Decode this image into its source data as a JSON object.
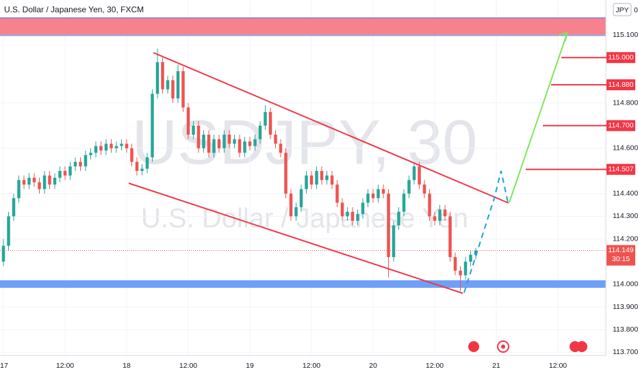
{
  "chart_data": {
    "type": "candlestick",
    "title": "U.S. Dollar / Japanese Yen, 30, FXCM",
    "watermark": "USDJPY, 30",
    "watermark_subtitle": "U.S. Dollar / Japanese Yen",
    "currency": "JPY",
    "currency_note": "0",
    "up_color": "#26a69a",
    "down_color": "#ef5350",
    "xlim": [
      -0.667,
      117.33
    ],
    "ylim": [
      113.686,
      115.254
    ],
    "xticks": [
      {
        "value": 0,
        "label": "17"
      },
      {
        "value": 12,
        "label": "12:00"
      },
      {
        "value": 24,
        "label": "18"
      },
      {
        "value": 36,
        "label": "12:00"
      },
      {
        "value": 48,
        "label": "19"
      },
      {
        "value": 60,
        "label": "12:00"
      },
      {
        "value": 72,
        "label": "20"
      },
      {
        "value": 84,
        "label": "12:00"
      },
      {
        "value": 96,
        "label": "21"
      },
      {
        "value": 108,
        "label": "12:00"
      }
    ],
    "yticks": [
      {
        "value": 115.1,
        "label": "115.100"
      },
      {
        "value": 114.8,
        "label": "114.800"
      },
      {
        "value": 114.6,
        "label": "114.600"
      },
      {
        "value": 114.4,
        "label": "114.400"
      },
      {
        "value": 114.3,
        "label": "114.300"
      },
      {
        "value": 114.2,
        "label": "114.200"
      },
      {
        "value": 114.0,
        "label": "114.000"
      },
      {
        "value": 113.9,
        "label": "113.900"
      },
      {
        "value": 113.8,
        "label": "113.800"
      },
      {
        "value": 113.7,
        "label": "113.700"
      }
    ],
    "levels": [
      {
        "value": 115.0,
        "label": "115.000"
      },
      {
        "value": 114.88,
        "label": "114.880"
      },
      {
        "value": 114.7,
        "label": "114.700"
      },
      {
        "value": 114.507,
        "label": "114.507"
      }
    ],
    "current_price": {
      "value": 114.149,
      "label": "114.149"
    },
    "countdown": "30:15",
    "x": [
      0,
      1,
      2,
      3,
      4,
      5,
      6,
      7,
      8,
      9,
      10,
      11,
      12,
      13,
      14,
      15,
      16,
      17,
      18,
      19,
      20,
      21,
      22,
      23,
      24,
      25,
      26,
      27,
      28,
      29,
      30,
      31,
      32,
      33,
      34,
      35,
      36,
      37,
      38,
      39,
      40,
      41,
      42,
      43,
      44,
      45,
      46,
      47,
      48,
      49,
      50,
      51,
      52,
      53,
      54,
      55,
      56,
      57,
      58,
      59,
      60,
      61,
      62,
      63,
      64,
      65,
      66,
      67,
      68,
      69,
      70,
      71,
      72,
      73,
      74,
      75,
      76,
      77,
      78,
      79,
      80,
      81,
      82,
      83,
      84,
      85,
      86,
      87,
      88,
      89,
      90,
      91,
      92
    ],
    "candles": [
      [
        114.1,
        114.2,
        114.08,
        114.17
      ],
      [
        114.17,
        114.32,
        114.15,
        114.3
      ],
      [
        114.3,
        114.4,
        114.28,
        114.38
      ],
      [
        114.38,
        114.48,
        114.36,
        114.46
      ],
      [
        114.46,
        114.48,
        114.42,
        114.44
      ],
      [
        114.44,
        114.49,
        114.42,
        114.47
      ],
      [
        114.47,
        114.49,
        114.43,
        114.45
      ],
      [
        114.45,
        114.47,
        114.4,
        114.42
      ],
      [
        114.42,
        114.5,
        114.4,
        114.48
      ],
      [
        114.48,
        114.5,
        114.42,
        114.44
      ],
      [
        114.44,
        114.49,
        114.42,
        114.47
      ],
      [
        114.47,
        114.52,
        114.45,
        114.5
      ],
      [
        114.5,
        114.52,
        114.46,
        114.48
      ],
      [
        114.48,
        114.54,
        114.46,
        114.52
      ],
      [
        114.52,
        114.56,
        114.5,
        114.54
      ],
      [
        114.54,
        114.56,
        114.5,
        114.52
      ],
      [
        114.52,
        114.59,
        114.5,
        114.57
      ],
      [
        114.57,
        114.6,
        114.55,
        114.58
      ],
      [
        114.58,
        114.63,
        114.56,
        114.61
      ],
      [
        114.61,
        114.63,
        114.57,
        114.59
      ],
      [
        114.59,
        114.64,
        114.57,
        114.62
      ],
      [
        114.62,
        114.64,
        114.58,
        114.6
      ],
      [
        114.6,
        114.63,
        114.58,
        114.61
      ],
      [
        114.61,
        114.64,
        114.59,
        114.62
      ],
      [
        114.62,
        114.64,
        114.58,
        114.6
      ],
      [
        114.6,
        114.62,
        114.52,
        114.54
      ],
      [
        114.54,
        114.56,
        114.48,
        114.5
      ],
      [
        114.5,
        114.53,
        114.48,
        114.51
      ],
      [
        114.51,
        114.58,
        114.49,
        114.56
      ],
      [
        114.56,
        114.86,
        114.54,
        114.84
      ],
      [
        114.84,
        115.04,
        114.82,
        114.98
      ],
      [
        114.98,
        115.0,
        114.84,
        114.86
      ],
      [
        114.86,
        114.92,
        114.84,
        114.9
      ],
      [
        114.9,
        114.92,
        114.8,
        114.82
      ],
      [
        114.82,
        114.97,
        114.8,
        114.94
      ],
      [
        114.94,
        114.96,
        114.76,
        114.78
      ],
      [
        114.78,
        114.8,
        114.64,
        114.66
      ],
      [
        114.66,
        114.72,
        114.64,
        114.7
      ],
      [
        114.7,
        114.72,
        114.58,
        114.6
      ],
      [
        114.6,
        114.68,
        114.58,
        114.66
      ],
      [
        114.66,
        114.68,
        114.56,
        114.58
      ],
      [
        114.58,
        114.66,
        114.56,
        114.64
      ],
      [
        114.64,
        114.66,
        114.58,
        114.6
      ],
      [
        114.6,
        114.68,
        114.58,
        114.66
      ],
      [
        114.66,
        114.68,
        114.6,
        114.62
      ],
      [
        114.62,
        114.66,
        114.6,
        114.64
      ],
      [
        114.64,
        114.66,
        114.56,
        114.58
      ],
      [
        114.58,
        114.65,
        114.56,
        114.63
      ],
      [
        114.63,
        114.65,
        114.59,
        114.61
      ],
      [
        114.61,
        114.66,
        114.59,
        114.64
      ],
      [
        114.64,
        114.72,
        114.62,
        114.7
      ],
      [
        114.7,
        114.79,
        114.68,
        114.76
      ],
      [
        114.76,
        114.78,
        114.64,
        114.66
      ],
      [
        114.66,
        114.68,
        114.6,
        114.62
      ],
      [
        114.62,
        114.64,
        114.56,
        114.58
      ],
      [
        114.58,
        114.6,
        114.38,
        114.4
      ],
      [
        114.4,
        114.42,
        114.28,
        114.3
      ],
      [
        114.3,
        114.36,
        114.28,
        114.34
      ],
      [
        114.34,
        114.44,
        114.32,
        114.42
      ],
      [
        114.42,
        114.5,
        114.4,
        114.48
      ],
      [
        114.48,
        114.5,
        114.42,
        114.44
      ],
      [
        114.44,
        114.52,
        114.42,
        114.5
      ],
      [
        114.5,
        114.52,
        114.44,
        114.46
      ],
      [
        114.46,
        114.5,
        114.44,
        114.48
      ],
      [
        114.48,
        114.5,
        114.42,
        114.44
      ],
      [
        114.44,
        114.46,
        114.34,
        114.36
      ],
      [
        114.36,
        114.38,
        114.28,
        114.3
      ],
      [
        114.3,
        114.34,
        114.28,
        114.32
      ],
      [
        114.32,
        114.34,
        114.26,
        114.28
      ],
      [
        114.28,
        114.33,
        114.26,
        114.31
      ],
      [
        114.31,
        114.38,
        114.29,
        114.36
      ],
      [
        114.36,
        114.42,
        114.34,
        114.4
      ],
      [
        114.4,
        114.42,
        114.36,
        114.38
      ],
      [
        114.38,
        114.44,
        114.36,
        114.42
      ],
      [
        114.42,
        114.44,
        114.38,
        114.4
      ],
      [
        114.4,
        114.42,
        114.03,
        114.12
      ],
      [
        114.12,
        114.28,
        114.1,
        114.26
      ],
      [
        114.26,
        114.34,
        114.24,
        114.32
      ],
      [
        114.32,
        114.42,
        114.3,
        114.4
      ],
      [
        114.4,
        114.48,
        114.38,
        114.46
      ],
      [
        114.46,
        114.54,
        114.44,
        114.52
      ],
      [
        114.52,
        114.54,
        114.42,
        114.44
      ],
      [
        114.44,
        114.46,
        114.38,
        114.4
      ],
      [
        114.4,
        114.42,
        114.28,
        114.3
      ],
      [
        114.3,
        114.32,
        114.26,
        114.28
      ],
      [
        114.28,
        114.35,
        114.26,
        114.33
      ],
      [
        114.33,
        114.35,
        114.28,
        114.3
      ],
      [
        114.3,
        114.32,
        114.1,
        114.12
      ],
      [
        114.12,
        114.14,
        114.04,
        114.06
      ],
      [
        114.06,
        114.08,
        113.97,
        114.04
      ],
      [
        114.04,
        114.12,
        114.02,
        114.1
      ],
      [
        114.1,
        114.15,
        114.08,
        114.13
      ],
      [
        114.13,
        114.16,
        114.11,
        114.149
      ]
    ]
  }
}
